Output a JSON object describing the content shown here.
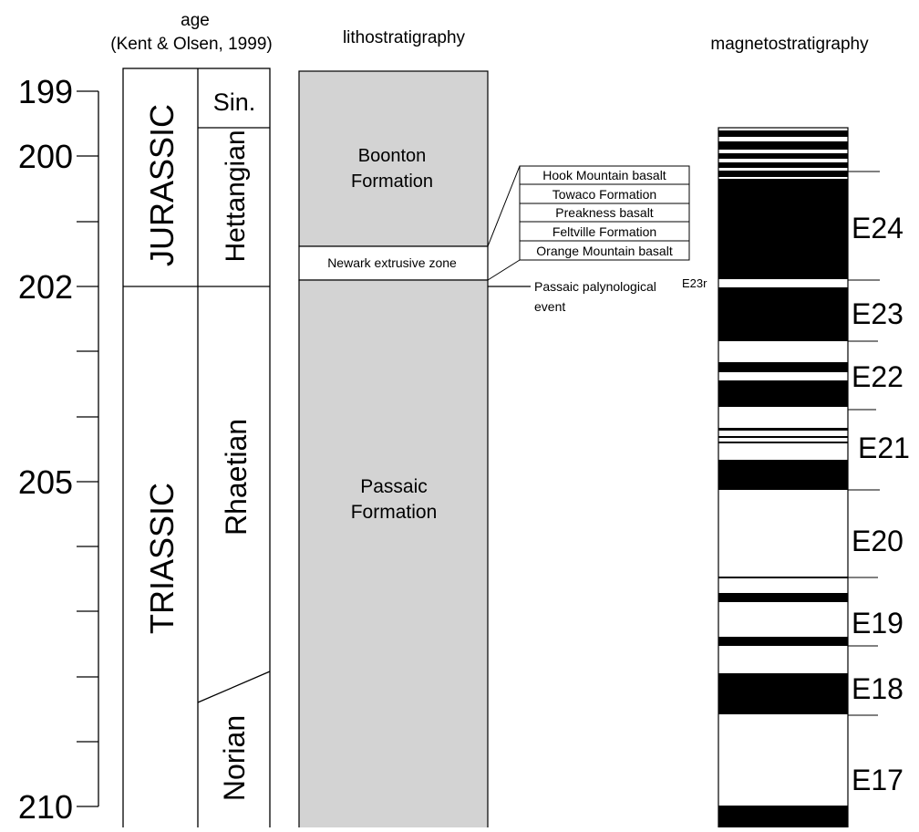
{
  "headers": {
    "age_line1": "age",
    "age_line2": "(Kent & Olsen, 1999)",
    "lithostratigraphy": "lithostratigraphy",
    "magnetostratigraphy": "magnetostratigraphy"
  },
  "age_axis": {
    "labeled_ticks": [
      {
        "value": 199,
        "label": "199"
      },
      {
        "value": 200,
        "label": "200"
      },
      {
        "value": 202,
        "label": "202"
      },
      {
        "value": 205,
        "label": "205"
      },
      {
        "value": 210,
        "label": "210"
      }
    ],
    "minor_ticks": [
      201,
      203,
      204,
      206,
      207,
      208,
      209
    ]
  },
  "periods": [
    {
      "label": "JURASSIC",
      "from": 199,
      "to": 202
    },
    {
      "label": "TRIASSIC",
      "from": 202,
      "to": 210
    }
  ],
  "stages": [
    {
      "label": "Sin.",
      "from": 199,
      "to": 199.9
    },
    {
      "label": "Hettangian",
      "from": 199.9,
      "to": 202
    },
    {
      "label": "Rhaetian",
      "from": 202,
      "to": 208.4
    },
    {
      "label": "Norian",
      "from": 208.4,
      "to": 210
    }
  ],
  "lithostratigraphy": {
    "units": [
      {
        "label_line1": "Boonton",
        "label_line2": "Formation"
      },
      {
        "label": "Newark extrusive zone"
      },
      {
        "label_line1": "Passaic",
        "label_line2": "Formation"
      }
    ],
    "extrusive_subunits": [
      "Hook Mountain basalt",
      "Towaco Formation",
      "Preakness basalt",
      "Feltville Formation",
      "Orange Mountain basalt"
    ],
    "event_line1": "Passaic palynological",
    "event_line2": "event",
    "event_chron": "E23r"
  },
  "magnetostratigraphy": {
    "chrons": [
      "E24",
      "E23",
      "E22",
      "E21",
      "E20",
      "E19",
      "E18",
      "E17"
    ],
    "normal_polarity_color": "#000000",
    "reversed_polarity_color": "#ffffff"
  },
  "colors": {
    "formation_fill": "#d3d3d3",
    "line": "#000000"
  }
}
